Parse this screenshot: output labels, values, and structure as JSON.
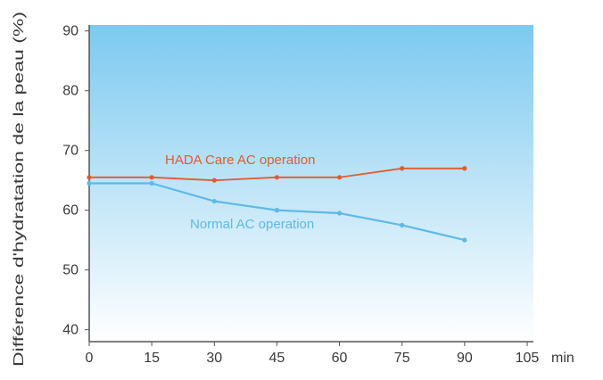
{
  "chart_data": {
    "type": "line",
    "title": "",
    "xlabel": "min",
    "ylabel": "Différence d'hydratation de la peau (%)",
    "x": [
      0,
      15,
      30,
      45,
      60,
      75,
      90
    ],
    "xticks": [
      0,
      15,
      30,
      45,
      60,
      75,
      90,
      105
    ],
    "yticks": [
      40,
      50,
      60,
      70,
      80,
      90
    ],
    "xlim": [
      0,
      106.5
    ],
    "ylim": [
      38,
      91
    ],
    "grid": false,
    "series": [
      {
        "name": "HADA Care AC operation",
        "color": "#e35a30",
        "values": [
          65.5,
          65.5,
          65,
          65.5,
          65.5,
          67,
          67
        ]
      },
      {
        "name": "Normal AC operation",
        "color": "#5db9ea",
        "values": [
          64.5,
          64.5,
          61.5,
          60,
          59.5,
          57.5,
          55
        ]
      }
    ],
    "background_gradient": {
      "top": "#7cc9f0",
      "bottom": "#ffffff"
    },
    "axis_color": "#555555"
  }
}
